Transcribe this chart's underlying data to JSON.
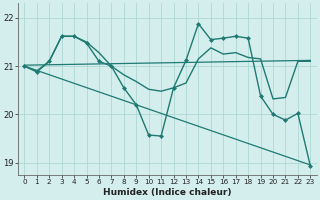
{
  "background_color": "#d4eeed",
  "grid_color": "#aed8d5",
  "line_color": "#1e7a72",
  "xlabel": "Humidex (Indice chaleur)",
  "xlim": [
    -0.5,
    23.5
  ],
  "ylim": [
    18.75,
    22.3
  ],
  "yticks": [
    19,
    20,
    21,
    22
  ],
  "xticks": [
    0,
    1,
    2,
    3,
    4,
    5,
    6,
    7,
    8,
    9,
    10,
    11,
    12,
    13,
    14,
    15,
    16,
    17,
    18,
    19,
    20,
    21,
    22,
    23
  ],
  "line_declining": {
    "x": [
      0,
      23
    ],
    "y": [
      21.0,
      18.95
    ],
    "linewidth": 0.9,
    "marker": null
  },
  "line_flat": {
    "x": [
      0,
      23
    ],
    "y": [
      21.02,
      21.12
    ],
    "linewidth": 0.9,
    "marker": null
  },
  "line_jagged_markers": {
    "x": [
      0,
      1,
      2,
      3,
      4,
      5,
      6,
      7,
      8,
      9,
      10,
      11,
      12,
      13,
      14,
      15,
      16,
      17,
      18,
      19,
      20,
      21,
      22,
      23
    ],
    "y": [
      21.0,
      20.88,
      21.1,
      21.62,
      21.62,
      21.48,
      21.1,
      21.0,
      20.55,
      20.2,
      19.57,
      19.55,
      20.55,
      21.12,
      21.88,
      21.55,
      21.58,
      21.62,
      21.58,
      20.38,
      20.0,
      19.88,
      20.02,
      18.93
    ],
    "linewidth": 1.0,
    "marker": "D",
    "markersize": 2.0
  },
  "line_smooth": {
    "x": [
      0,
      1,
      2,
      3,
      4,
      5,
      6,
      7,
      8,
      9,
      10,
      11,
      12,
      13,
      14,
      15,
      16,
      17,
      18,
      19,
      20,
      21,
      22,
      23
    ],
    "y": [
      21.0,
      20.9,
      21.1,
      21.62,
      21.62,
      21.5,
      21.28,
      21.0,
      20.82,
      20.68,
      20.52,
      20.48,
      20.55,
      20.65,
      21.15,
      21.38,
      21.25,
      21.28,
      21.18,
      21.15,
      20.32,
      20.35,
      21.1,
      21.1
    ],
    "linewidth": 1.0,
    "marker": null
  }
}
